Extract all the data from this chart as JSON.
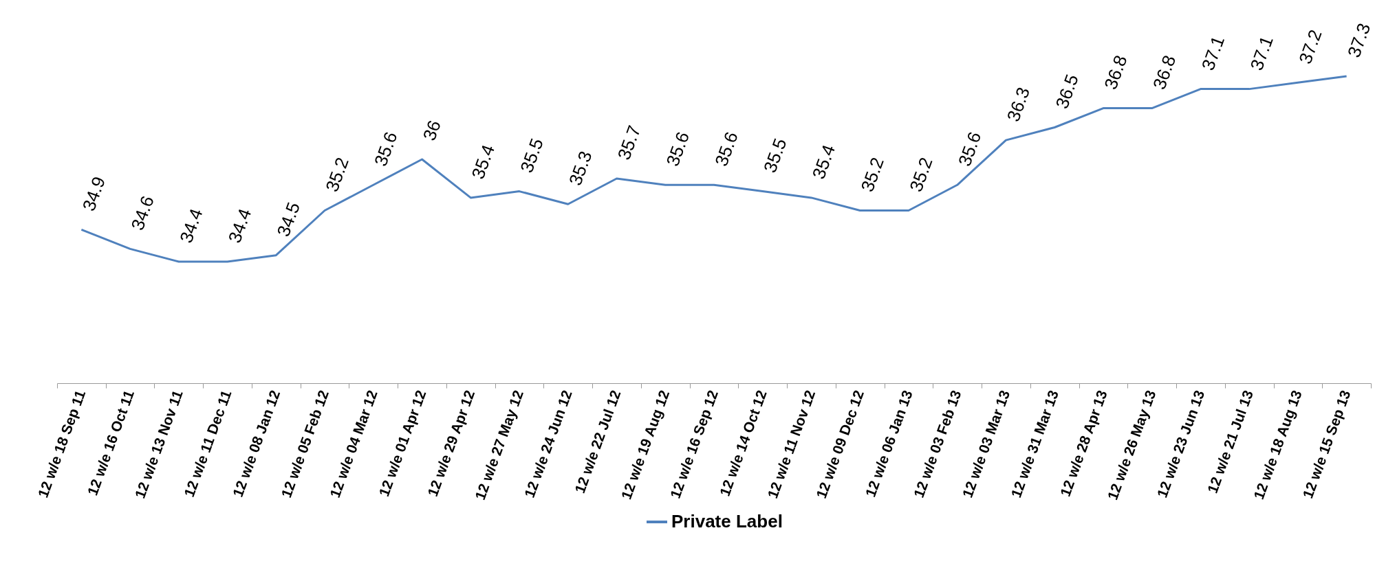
{
  "chart_data": {
    "type": "line",
    "categories": [
      "12 w/e 18 Sep 11",
      "12 w/e 16 Oct 11",
      "12 w/e 13 Nov 11",
      "12 w/e 11 Dec 11",
      "12 w/e 08 Jan 12",
      "12 w/e 05 Feb 12",
      "12 w/e 04 Mar 12",
      "12 w/e 01 Apr 12",
      "12 w/e 29 Apr 12",
      "12 w/e 27 May 12",
      "12 w/e 24 Jun 12",
      "12 w/e 22 Jul 12",
      "12 w/e 19 Aug 12",
      "12 w/e 16 Sep 12",
      "12 w/e 14 Oct 12",
      "12 w/e 11 Nov 12",
      "12 w/e 09 Dec 12",
      "12 w/e 06 Jan 13",
      "12 w/e 03 Feb 13",
      "12 w/e 03 Mar 13",
      "12 w/e 31 Mar 13",
      "12 w/e 28 Apr 13",
      "12 w/e 26 May 13",
      "12 w/e 23 Jun 13",
      "12 w/e 21 Jul 13",
      "12 w/e 18 Aug 13",
      "12 w/e 15 Sep 13"
    ],
    "series": [
      {
        "name": "Private Label",
        "color": "#4f81bd",
        "values": [
          34.9,
          34.6,
          34.4,
          34.4,
          34.5,
          35.2,
          35.6,
          36,
          35.4,
          35.5,
          35.3,
          35.7,
          35.6,
          35.6,
          35.5,
          35.4,
          35.2,
          35.2,
          35.6,
          36.3,
          36.5,
          36.8,
          36.8,
          37.1,
          37.1,
          37.2,
          37.3
        ]
      }
    ],
    "data_labels": true,
    "legend": "bottom",
    "tick_labels": "x",
    "grid": false,
    "marker": "none",
    "line_style": "solid"
  }
}
